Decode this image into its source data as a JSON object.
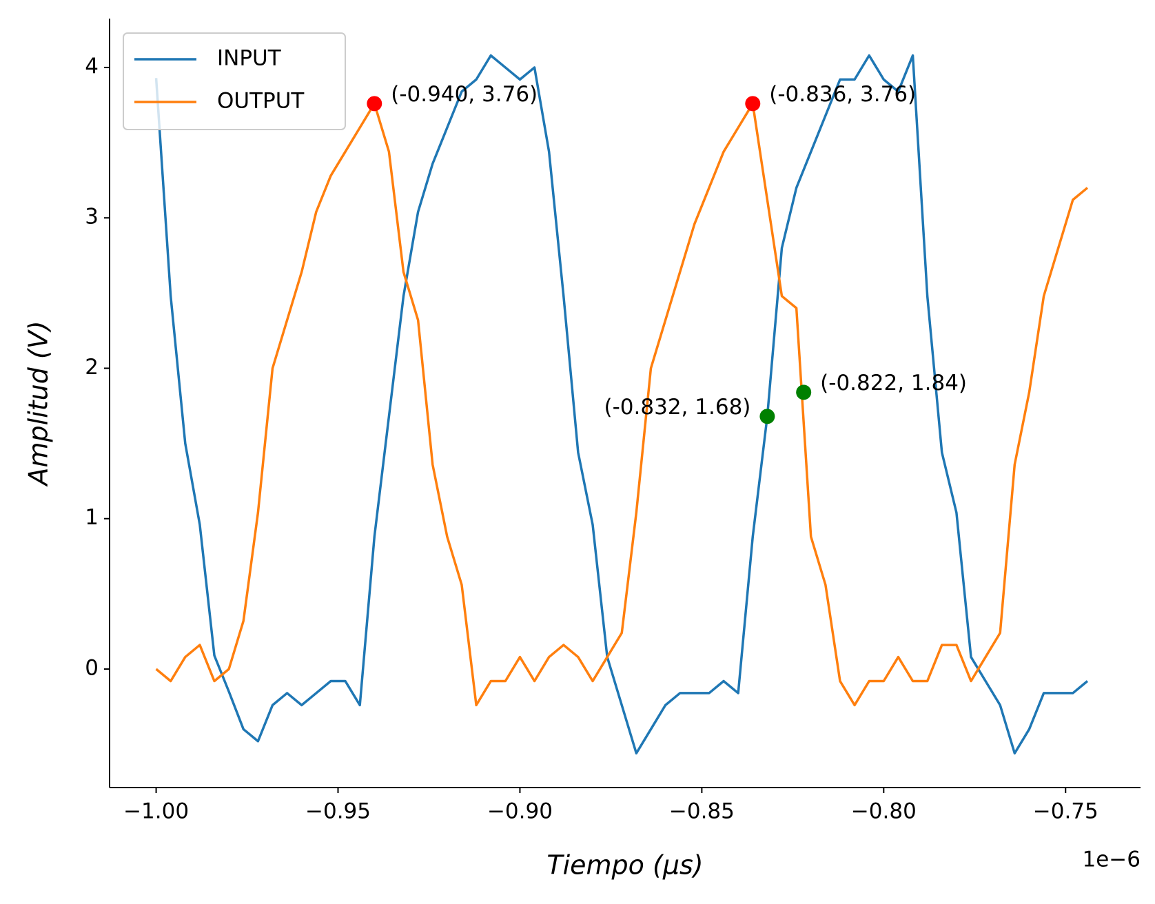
{
  "chart_data": {
    "type": "line",
    "xlabel": "Tiempo (µs)",
    "ylabel": "Amplitud (V)",
    "x_offset_text": "1e−6",
    "x": [
      -1e-06,
      -9.96e-07,
      -9.92e-07,
      -9.88e-07,
      -9.84e-07,
      -9.8e-07,
      -9.76e-07,
      -9.72e-07,
      -9.68e-07,
      -9.64e-07,
      -9.6e-07,
      -9.56e-07,
      -9.52e-07,
      -9.48e-07,
      -9.44e-07,
      -9.4e-07,
      -9.36e-07,
      -9.32e-07,
      -9.28e-07,
      -9.24e-07,
      -9.2e-07,
      -9.16e-07,
      -9.12e-07,
      -9.08e-07,
      -9.04e-07,
      -9e-07,
      -8.96e-07,
      -8.92e-07,
      -8.88e-07,
      -8.84e-07,
      -8.8e-07,
      -8.76e-07,
      -8.72e-07,
      -8.68e-07,
      -8.64e-07,
      -8.6e-07,
      -8.56e-07,
      -8.52e-07,
      -8.48e-07,
      -8.44e-07,
      -8.4e-07,
      -8.36e-07,
      -8.32e-07,
      -8.28e-07,
      -8.24e-07,
      -8.2e-07,
      -8.16e-07,
      -8.12e-07,
      -8.08e-07,
      -8.04e-07,
      -8e-07,
      -7.96e-07,
      -7.92e-07,
      -7.88e-07,
      -7.84e-07,
      -7.8e-07,
      -7.76e-07,
      -7.72e-07,
      -7.68e-07,
      -7.64e-07,
      -7.6e-07,
      -7.56e-07,
      -7.52e-07,
      -7.48e-07,
      -7.44e-07
    ],
    "series": [
      {
        "name": "INPUT",
        "color": "#1f77b4",
        "values": [
          3.93,
          2.48,
          1.5,
          0.96,
          0.09,
          -0.15,
          -0.4,
          -0.48,
          -0.24,
          -0.16,
          -0.24,
          -0.16,
          -0.08,
          -0.08,
          -0.24,
          0.88,
          1.68,
          2.48,
          3.04,
          3.36,
          3.6,
          3.84,
          3.92,
          4.08,
          4.0,
          3.92,
          4.0,
          3.44,
          2.48,
          1.44,
          0.96,
          0.08,
          -0.24,
          -0.56,
          -0.4,
          -0.24,
          -0.16,
          -0.16,
          -0.16,
          -0.08,
          -0.16,
          0.88,
          1.68,
          2.8,
          3.2,
          3.44,
          3.68,
          3.92,
          3.92,
          4.08,
          3.92,
          3.84,
          4.08,
          2.48,
          1.44,
          1.04,
          0.08,
          -0.08,
          -0.24,
          -0.56,
          -0.4,
          -0.16,
          -0.16,
          -0.16,
          -0.08
        ]
      },
      {
        "name": "OUTPUT",
        "color": "#ff7f0e",
        "values": [
          0,
          -0.08,
          0.08,
          0.16,
          -0.08,
          0,
          0.32,
          1.04,
          2.0,
          2.32,
          2.64,
          3.04,
          3.28,
          3.44,
          3.6,
          3.76,
          3.44,
          2.64,
          2.32,
          1.36,
          0.88,
          0.56,
          -0.24,
          -0.08,
          -0.08,
          0.08,
          -0.08,
          0.08,
          0.16,
          0.08,
          -0.08,
          0.08,
          0.24,
          1.04,
          2.0,
          2.32,
          2.64,
          2.96,
          3.2,
          3.44,
          3.6,
          3.76,
          3.12,
          2.48,
          2.4,
          0.88,
          0.56,
          -0.08,
          -0.24,
          -0.08,
          -0.08,
          0.08,
          -0.08,
          -0.08,
          0.16,
          0.16,
          -0.08,
          0.08,
          0.24,
          1.36,
          1.84,
          2.48,
          2.8,
          3.12,
          3.2
        ]
      }
    ],
    "annotations": [
      {
        "x": -9.4e-07,
        "y": 3.76,
        "label": "(-0.940, 3.76)",
        "color": "red",
        "ha": "left"
      },
      {
        "x": -8.36e-07,
        "y": 3.76,
        "label": "(-0.836, 3.76)",
        "color": "red",
        "ha": "left"
      },
      {
        "x": -8.32e-07,
        "y": 1.68,
        "label": "(-0.832, 1.68)",
        "color": "green",
        "ha": "right"
      },
      {
        "x": -8.22e-07,
        "y": 1.84,
        "label": "(-0.822, 1.84)",
        "color": "green",
        "ha": "left"
      }
    ],
    "xlim": [
      -1.0128e-06,
      -7.294e-07
    ],
    "ylim": [
      -0.788,
      4.325
    ],
    "xticks": [
      {
        "value": -1e-06,
        "label": "−1.00"
      },
      {
        "value": -9.5e-07,
        "label": "−0.95"
      },
      {
        "value": -9e-07,
        "label": "−0.90"
      },
      {
        "value": -8.5e-07,
        "label": "−0.85"
      },
      {
        "value": -8e-07,
        "label": "−0.80"
      },
      {
        "value": -7.5e-07,
        "label": "−0.75"
      }
    ],
    "yticks": [
      0,
      1,
      2,
      3,
      4
    ],
    "grid": false,
    "legend": "upper left"
  }
}
